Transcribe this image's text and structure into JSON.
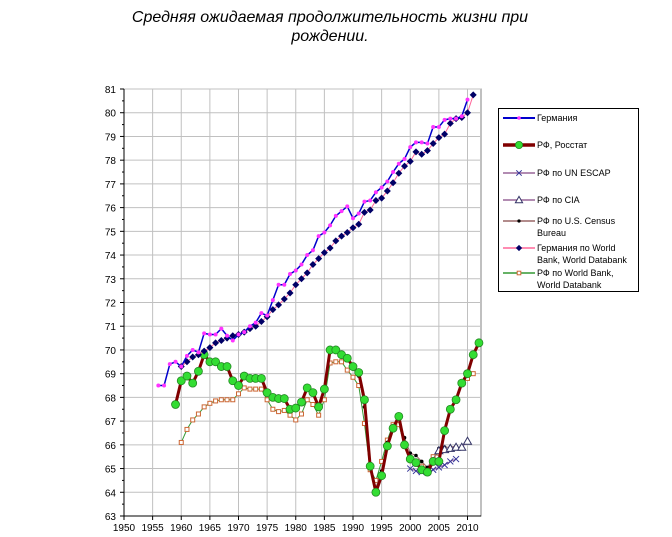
{
  "title": "Средняя ожидаемая продолжительность жизни при рождении.",
  "title_lines": [
    "Средняя ожидаемая продолжительность жизни при",
    "рождении."
  ],
  "chart_data": {
    "type": "line",
    "title": "Средняя ожидаемая продолжительность жизни при рождении.",
    "xlabel": "",
    "ylabel": "",
    "xlim": [
      1950,
      2012
    ],
    "ylim": [
      63,
      81
    ],
    "xticks": [
      1950,
      1955,
      1960,
      1965,
      1970,
      1975,
      1980,
      1985,
      1990,
      1995,
      2000,
      2005,
      2010
    ],
    "yticks": [
      63,
      64,
      65,
      66,
      67,
      68,
      69,
      70,
      71,
      72,
      73,
      74,
      75,
      76,
      77,
      78,
      79,
      80,
      81
    ],
    "grid": true,
    "legend_position": "right",
    "series": [
      {
        "name": "Германия",
        "color": "#0000cc",
        "marker_color": "#ff33ff",
        "marker": "dot",
        "x": [
          1956,
          1957,
          1958,
          1959,
          1960,
          1961,
          1962,
          1963,
          1964,
          1965,
          1966,
          1967,
          1968,
          1969,
          1970,
          1971,
          1972,
          1973,
          1974,
          1975,
          1976,
          1977,
          1978,
          1979,
          1980,
          1981,
          1982,
          1983,
          1984,
          1985,
          1986,
          1987,
          1988,
          1989,
          1990,
          1991,
          1992,
          1993,
          1994,
          1995,
          1996,
          1997,
          1998,
          1999,
          2000,
          2001,
          2002,
          2003,
          2004,
          2005,
          2006,
          2007,
          2008,
          2009,
          2010
        ],
        "values": [
          68.5,
          68.5,
          69.4,
          69.5,
          69.3,
          69.75,
          70.0,
          69.9,
          70.7,
          70.65,
          70.65,
          70.9,
          70.6,
          70.4,
          70.65,
          70.75,
          71.0,
          71.15,
          71.55,
          71.45,
          72.1,
          72.75,
          72.75,
          73.2,
          73.35,
          73.6,
          74.0,
          74.2,
          74.8,
          74.95,
          75.25,
          75.65,
          75.85,
          76.05,
          75.55,
          75.75,
          76.25,
          76.3,
          76.65,
          76.85,
          77.1,
          77.5,
          77.85,
          78.05,
          78.55,
          78.75,
          78.75,
          78.7,
          79.4,
          79.4,
          79.7,
          79.75,
          79.75,
          79.85,
          80.55
        ]
      },
      {
        "name": "РФ, Росстат",
        "color": "#800000",
        "marker_color": "#33dd33",
        "marker": "circle",
        "x": [
          1959,
          1960,
          1961,
          1962,
          1963,
          1964,
          1965,
          1966,
          1967,
          1968,
          1969,
          1970,
          1971,
          1972,
          1973,
          1974,
          1975,
          1976,
          1977,
          1978,
          1979,
          1980,
          1981,
          1982,
          1983,
          1984,
          1985,
          1986,
          1987,
          1988,
          1989,
          1990,
          1991,
          1992,
          1993,
          1994,
          1995,
          1996,
          1997,
          1998,
          1999,
          2000,
          2001,
          2002,
          2003,
          2004,
          2005,
          2006,
          2007,
          2008,
          2009,
          2010,
          2011,
          2012
        ],
        "values": [
          67.7,
          68.7,
          68.9,
          68.6,
          69.1,
          69.8,
          69.5,
          69.5,
          69.3,
          69.3,
          68.7,
          68.5,
          68.9,
          68.8,
          68.8,
          68.8,
          68.2,
          68.0,
          67.95,
          67.95,
          67.5,
          67.55,
          67.8,
          68.4,
          68.2,
          67.6,
          68.35,
          70.0,
          70.0,
          69.8,
          69.65,
          69.3,
          69.05,
          67.9,
          65.1,
          64.0,
          64.7,
          65.95,
          66.7,
          67.2,
          66.0,
          65.4,
          65.25,
          64.95,
          64.85,
          65.3,
          65.3,
          66.6,
          67.5,
          67.9,
          68.6,
          69.0,
          69.8,
          70.3
        ]
      },
      {
        "name": "РФ по UN ESCAP",
        "color": "#996699",
        "marker_color": "#333399",
        "marker": "x",
        "x": [
          2000,
          2001,
          2002,
          2003,
          2004,
          2005,
          2006,
          2007,
          2008
        ],
        "values": [
          65.0,
          64.9,
          64.85,
          64.85,
          64.95,
          65.05,
          65.15,
          65.3,
          65.4
        ]
      },
      {
        "name": "РФ по CIA",
        "color": "#996699",
        "marker_color": "#333366",
        "marker": "triangle",
        "x": [
          2005,
          2006,
          2007,
          2008,
          2009,
          2010
        ],
        "values": [
          65.75,
          65.8,
          65.85,
          65.9,
          65.9,
          66.15
        ]
      },
      {
        "name": "РФ по U.S. Census Bureau",
        "color": "#996666",
        "marker_color": "#000000",
        "marker": "smalldot",
        "x": [
          1990,
          1991,
          1992,
          1993,
          1994,
          1995,
          1996,
          1997,
          1998,
          1999,
          2000,
          2001,
          2002,
          2003,
          2004,
          2005,
          2006,
          2007,
          2008
        ],
        "values": [
          69.2,
          68.9,
          67.6,
          65.2,
          64.2,
          64.9,
          66.1,
          66.8,
          67.1,
          66.3,
          65.65,
          65.55,
          65.3,
          65.05,
          65.4,
          65.85,
          65.9,
          65.9,
          65.95
        ]
      },
      {
        "name": "Германия по World Bank, World Databank",
        "color": "#ff6699",
        "marker_color": "#000066",
        "marker": "diamond",
        "x": [
          1960,
          1961,
          1962,
          1963,
          1964,
          1965,
          1966,
          1967,
          1968,
          1969,
          1970,
          1971,
          1972,
          1973,
          1974,
          1975,
          1976,
          1977,
          1978,
          1979,
          1980,
          1981,
          1982,
          1983,
          1984,
          1985,
          1986,
          1987,
          1988,
          1989,
          1990,
          1991,
          1992,
          1993,
          1994,
          1995,
          1996,
          1997,
          1998,
          1999,
          2000,
          2001,
          2002,
          2003,
          2004,
          2005,
          2006,
          2007,
          2008,
          2009,
          2010,
          2011
        ],
        "values": [
          69.3,
          69.5,
          69.7,
          69.8,
          69.95,
          70.1,
          70.3,
          70.4,
          70.5,
          70.6,
          70.65,
          70.75,
          70.9,
          71.0,
          71.2,
          71.4,
          71.7,
          71.9,
          72.15,
          72.4,
          72.75,
          73.0,
          73.25,
          73.6,
          73.85,
          74.1,
          74.3,
          74.6,
          74.8,
          74.95,
          75.15,
          75.3,
          75.8,
          75.9,
          76.3,
          76.4,
          76.7,
          77.05,
          77.45,
          77.75,
          77.95,
          78.35,
          78.25,
          78.4,
          78.7,
          78.95,
          79.1,
          79.55,
          79.75,
          79.8,
          80.0,
          80.75
        ]
      },
      {
        "name": "РФ по World Bank, World Databank",
        "color": "#339933",
        "marker_color": "#cc6633",
        "marker": "square",
        "x": [
          1960,
          1961,
          1962,
          1963,
          1964,
          1965,
          1966,
          1967,
          1968,
          1969,
          1970,
          1971,
          1972,
          1973,
          1974,
          1975,
          1976,
          1977,
          1978,
          1979,
          1980,
          1981,
          1982,
          1983,
          1984,
          1985,
          1986,
          1987,
          1988,
          1989,
          1990,
          1991,
          1992,
          1993,
          1994,
          1995,
          1996,
          1997,
          1998,
          1999,
          2000,
          2001,
          2002,
          2003,
          2004,
          2005,
          2006,
          2007,
          2008,
          2009,
          2010,
          2011
        ],
        "values": [
          66.1,
          66.65,
          67.05,
          67.3,
          67.6,
          67.75,
          67.85,
          67.9,
          67.9,
          67.9,
          68.15,
          68.4,
          68.35,
          68.35,
          68.35,
          67.9,
          67.5,
          67.4,
          67.45,
          67.25,
          67.05,
          67.3,
          67.9,
          67.7,
          67.25,
          67.9,
          69.45,
          69.5,
          69.5,
          69.15,
          68.85,
          68.5,
          66.9,
          64.95,
          64.5,
          65.3,
          66.2,
          66.85,
          66.85,
          66.0,
          65.45,
          65.3,
          65.1,
          65.0,
          65.5,
          65.65,
          66.6,
          67.5,
          67.9,
          68.6,
          68.8,
          69.0
        ]
      }
    ]
  },
  "legend": {
    "items": [
      {
        "label": "Германия"
      },
      {
        "label": "РФ, Росстат"
      },
      {
        "label": "РФ по UN ESCAP"
      },
      {
        "label": "РФ по CIA"
      },
      {
        "label": "РФ по U.S. Census Bureau"
      },
      {
        "label": "Германия по World Bank, World Databank"
      },
      {
        "label": "РФ по World Bank, World Databank"
      }
    ]
  }
}
